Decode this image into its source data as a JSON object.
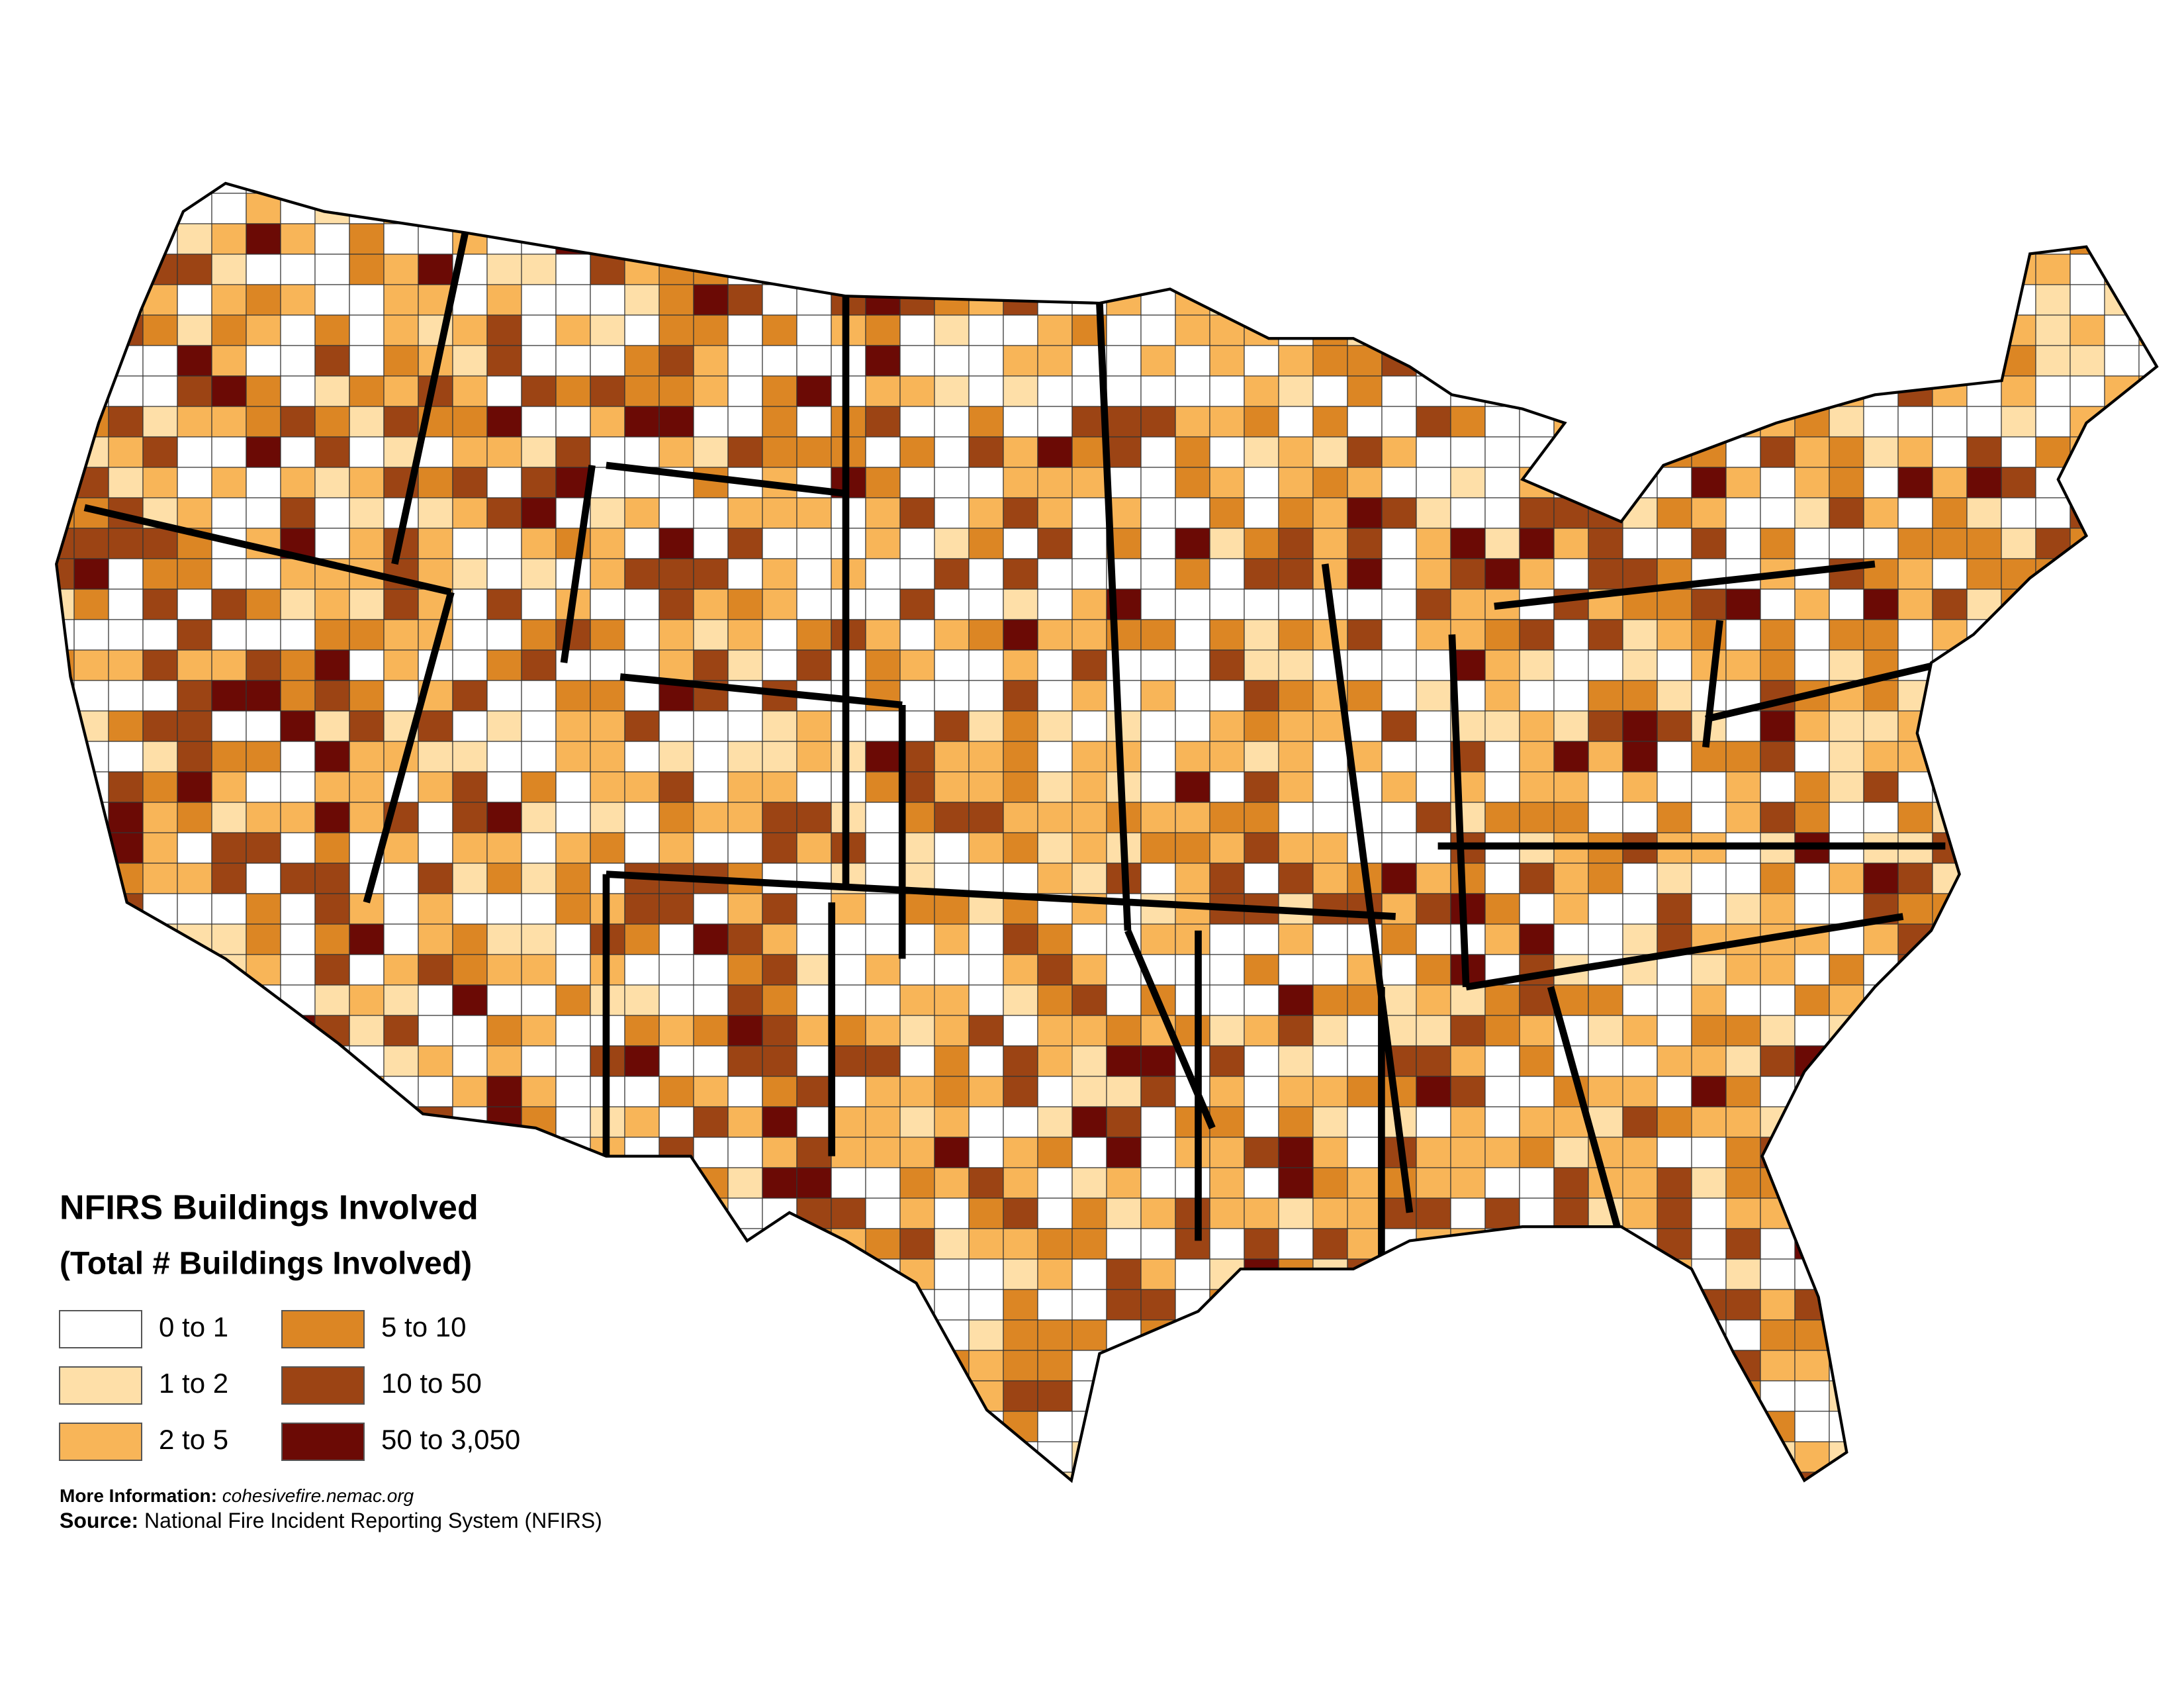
{
  "legend": {
    "title": "NFIRS Buildings Involved",
    "subtitle": "(Total # Buildings Involved)",
    "items": [
      {
        "label": "0 to 1",
        "color": "#ffffff"
      },
      {
        "label": "1 to 2",
        "color": "#fedfa8"
      },
      {
        "label": "2 to 5",
        "color": "#f8b558"
      },
      {
        "label": "5 to 10",
        "color": "#dc8624"
      },
      {
        "label": "10 to 50",
        "color": "#9c4414"
      },
      {
        "label": "50 to 3,050",
        "color": "#6b0a05"
      }
    ]
  },
  "footer": {
    "more_info_label": "More Information:",
    "more_info": "cohesivefire.nemac.org",
    "source_label": "Source:",
    "source": "National Fire Incident Reporting System (NFIRS)"
  }
}
